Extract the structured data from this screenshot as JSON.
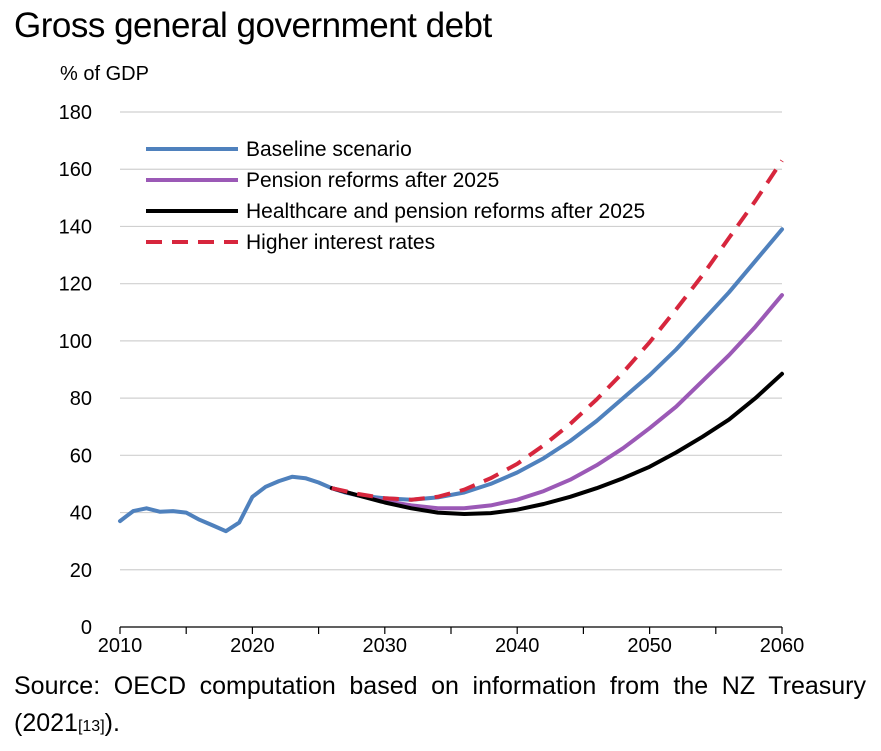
{
  "title": "Gross general government debt",
  "source": {
    "main": "Source: OECD computation based on information from the NZ Treasury (2021",
    "ref": "[13]",
    "end": ")."
  },
  "chart_data": {
    "type": "line",
    "title": "",
    "ylabel": "% of GDP",
    "xlabel": "",
    "xlim": [
      2010,
      2060
    ],
    "ylim": [
      0,
      180
    ],
    "xticks": [
      2010,
      2020,
      2030,
      2040,
      2050,
      2060
    ],
    "yticks": [
      0,
      20,
      40,
      60,
      80,
      100,
      120,
      140,
      160,
      180
    ],
    "grid": "horizontal",
    "legend_position": "top-left",
    "series": [
      {
        "name": "Baseline scenario",
        "color": "#4f81bd",
        "style": "solid",
        "x": [
          2010,
          2011,
          2012,
          2013,
          2014,
          2015,
          2016,
          2017,
          2018,
          2019,
          2020,
          2021,
          2022,
          2023,
          2024,
          2025,
          2026,
          2027,
          2028,
          2030,
          2032,
          2034,
          2036,
          2038,
          2040,
          2042,
          2044,
          2046,
          2048,
          2050,
          2052,
          2054,
          2056,
          2058,
          2060
        ],
        "values": [
          37,
          40.5,
          41.5,
          40.3,
          40.5,
          40,
          37.5,
          35.5,
          33.5,
          36.5,
          45.5,
          49,
          51,
          52.5,
          52,
          50.5,
          48.5,
          47,
          46,
          45,
          44.5,
          45.3,
          47,
          50,
          54,
          59,
          65,
          72,
          80,
          88,
          97,
          107,
          117,
          128,
          139
        ]
      },
      {
        "name": "Pension reforms after 2025",
        "color": "#9b59b6",
        "style": "solid",
        "x": [
          2026,
          2028,
          2030,
          2032,
          2034,
          2036,
          2038,
          2040,
          2042,
          2044,
          2046,
          2048,
          2050,
          2052,
          2054,
          2056,
          2058,
          2060
        ],
        "values": [
          48.5,
          46,
          44,
          42.5,
          41.5,
          41.5,
          42.5,
          44.5,
          47.5,
          51.5,
          56.5,
          62.5,
          69.5,
          77,
          86,
          95,
          105,
          116
        ]
      },
      {
        "name": "Healthcare and pension reforms after 2025",
        "color": "#000000",
        "style": "solid",
        "x": [
          2026,
          2028,
          2030,
          2032,
          2034,
          2036,
          2038,
          2040,
          2042,
          2044,
          2046,
          2048,
          2050,
          2052,
          2054,
          2056,
          2058,
          2060
        ],
        "values": [
          48.5,
          46,
          43.5,
          41.5,
          40,
          39.5,
          39.8,
          41,
          43,
          45.5,
          48.5,
          52,
          56,
          61,
          66.5,
          72.5,
          80,
          88.5
        ]
      },
      {
        "name": "Higher interest rates",
        "color": "#d7263d",
        "style": "dashed",
        "x": [
          2026,
          2028,
          2030,
          2032,
          2034,
          2036,
          2038,
          2040,
          2042,
          2044,
          2046,
          2048,
          2050,
          2052,
          2054,
          2056,
          2058,
          2060
        ],
        "values": [
          48.5,
          46.5,
          45,
          44.5,
          45.5,
          48,
          52,
          57,
          63.5,
          71,
          79.5,
          89,
          99.5,
          111,
          123,
          136,
          149,
          163
        ]
      }
    ]
  }
}
